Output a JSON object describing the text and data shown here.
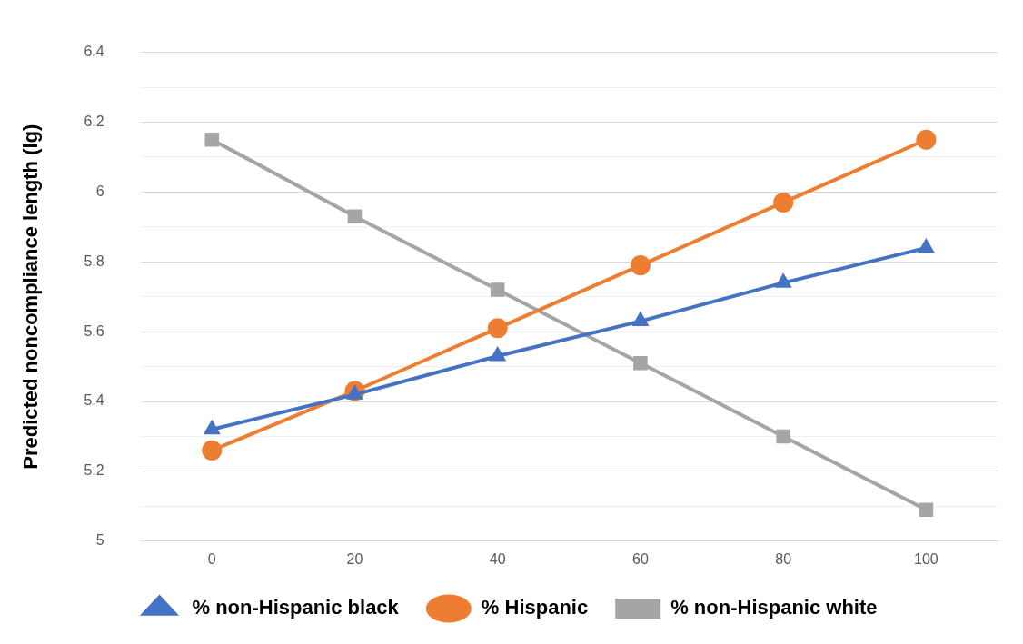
{
  "chart_data": {
    "type": "line",
    "ylabel": "Predicted noncompliance length (lg)",
    "categories": [
      "0",
      "20",
      "40",
      "60",
      "80",
      "100"
    ],
    "series": [
      {
        "name": "% non-Hispanic black",
        "color": "#4472c4",
        "marker": "triangle",
        "values": [
          5.32,
          5.42,
          5.53,
          5.63,
          5.74,
          5.84
        ]
      },
      {
        "name": "% Hispanic",
        "color": "#ed7d31",
        "marker": "circle",
        "values": [
          5.26,
          5.43,
          5.61,
          5.79,
          5.97,
          6.15
        ]
      },
      {
        "name": "% non-Hispanic white",
        "color": "#a5a5a5",
        "marker": "square",
        "values": [
          6.15,
          5.93,
          5.72,
          5.51,
          5.3,
          5.09
        ]
      }
    ],
    "ylim": [
      5,
      6.4
    ],
    "yticks": [
      5,
      {
        "value": 5.1,
        "label": null
      },
      5.2,
      {
        "value": 5.3,
        "label": null
      },
      5.4,
      {
        "value": 5.5,
        "label": null
      },
      5.6,
      {
        "value": 5.7,
        "label": null
      },
      5.8,
      {
        "value": 5.9,
        "label": null
      },
      6,
      {
        "value": 6.1,
        "label": null
      },
      6.2,
      {
        "value": 6.3,
        "label": null
      },
      6.4
    ],
    "grid": "y",
    "legend": "bottom",
    "line_style": "solid"
  }
}
